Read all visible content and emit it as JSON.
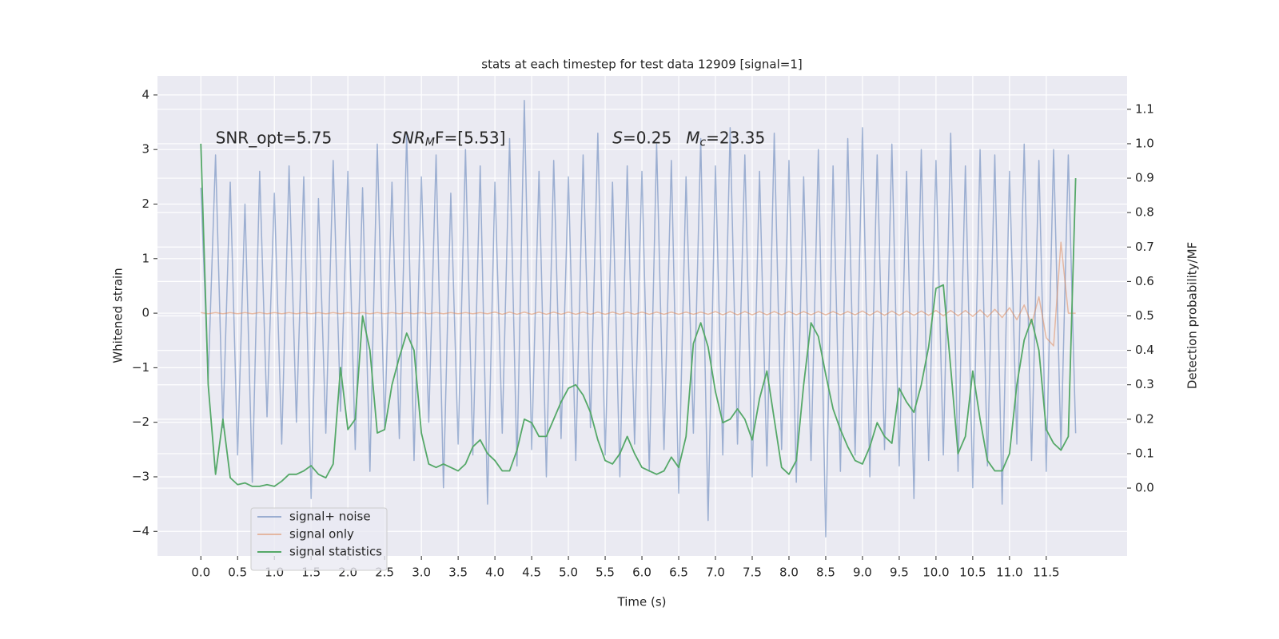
{
  "chart_data": {
    "type": "line",
    "title": "stats at each timestep for test data 12909 [signal=1]",
    "xlabel": "Time (s)",
    "ylabel": "Whitened strain",
    "y2label": "Detection probability/MF",
    "annotations": [
      {
        "parts": [
          "SNR_opt=5.75"
        ],
        "x": 0.2,
        "y": 3.2
      },
      {
        "parts": [
          "SNR",
          "M",
          "F=[5.53]"
        ],
        "x": 2.6,
        "y": 3.2
      },
      {
        "parts": [
          "S",
          "=0.25"
        ],
        "x": 5.6,
        "y": 3.2
      },
      {
        "parts": [
          "M",
          "c",
          "=23.35"
        ],
        "x": 6.6,
        "y": 3.2
      }
    ],
    "xlim": [
      -0.59,
      12.6
    ],
    "ylim": [
      -4.45,
      4.35
    ],
    "y2lim": [
      -0.197,
      1.197
    ],
    "xticks": [
      {
        "value": 0,
        "label": "0.0"
      },
      0.5,
      {
        "value": 1,
        "label": "1.0"
      },
      1.5,
      {
        "value": 2,
        "label": "2.0"
      },
      2.5,
      {
        "value": 3,
        "label": "3.0"
      },
      3.5,
      {
        "value": 4,
        "label": "4.0"
      },
      4.5,
      {
        "value": 5,
        "label": "5.0"
      },
      5.5,
      {
        "value": 6,
        "label": "6.0"
      },
      6.5,
      {
        "value": 7,
        "label": "7.0"
      },
      7.5,
      {
        "value": 8,
        "label": "8.0"
      },
      8.5,
      {
        "value": 9,
        "label": "9.0"
      },
      9.5,
      {
        "value": 10,
        "label": "10.0"
      },
      10.5,
      {
        "value": 11,
        "label": "11.0"
      },
      11.5
    ],
    "yticks": [
      {
        "value": -4,
        "label": "−4"
      },
      {
        "value": -3,
        "label": "−3"
      },
      {
        "value": -2,
        "label": "−2"
      },
      {
        "value": -1,
        "label": "−1"
      },
      0,
      1,
      2,
      3,
      4
    ],
    "y2ticks": [
      {
        "value": 0,
        "label": "0.0"
      },
      0.1,
      0.2,
      0.3,
      0.4,
      0.5,
      0.6,
      0.7,
      0.8,
      0.9,
      {
        "value": 1,
        "label": "1.0"
      },
      1.1
    ],
    "grid": true,
    "legend": "lower left",
    "x": [
      0,
      0.1,
      0.2,
      0.3,
      0.4,
      0.5,
      0.6,
      0.7,
      0.8,
      0.9,
      1,
      1.1,
      1.2,
      1.3,
      1.4,
      1.5,
      1.6,
      1.7,
      1.8,
      1.9,
      2,
      2.1,
      2.2,
      2.3,
      2.4,
      2.5,
      2.6,
      2.7,
      2.8,
      2.9,
      3,
      3.1,
      3.2,
      3.3,
      3.4,
      3.5,
      3.6,
      3.7,
      3.8,
      3.9,
      4,
      4.1,
      4.2,
      4.3,
      4.4,
      4.5,
      4.6,
      4.7,
      4.8,
      4.9,
      5,
      5.1,
      5.2,
      5.3,
      5.4,
      5.5,
      5.6,
      5.7,
      5.8,
      5.9,
      6,
      6.1,
      6.2,
      6.3,
      6.4,
      6.5,
      6.6,
      6.7,
      6.8,
      6.9,
      7,
      7.1,
      7.2,
      7.3,
      7.4,
      7.5,
      7.6,
      7.7,
      7.8,
      7.9,
      8,
      8.1,
      8.2,
      8.3,
      8.4,
      8.5,
      8.6,
      8.7,
      8.8,
      8.9,
      9,
      9.1,
      9.2,
      9.3,
      9.4,
      9.5,
      9.6,
      9.7,
      9.8,
      9.9,
      10,
      10.1,
      10.2,
      10.3,
      10.4,
      10.5,
      10.6,
      10.7,
      10.8,
      10.9,
      11,
      11.1,
      11.2,
      11.3,
      11.4,
      11.5,
      11.6,
      11.7,
      11.8,
      11.9
    ],
    "series": [
      {
        "name": "signal+ noise",
        "color": "#4c72b0",
        "alpha": 0.5,
        "values": [
          2.3,
          -1.2,
          2.9,
          -2.1,
          2.4,
          -2.6,
          2.0,
          -3.1,
          2.6,
          -1.9,
          2.2,
          -2.4,
          2.7,
          -2.0,
          2.5,
          -3.4,
          2.1,
          -2.2,
          2.8,
          -1.8,
          2.6,
          -2.5,
          2.3,
          -2.9,
          3.1,
          -2.1,
          2.4,
          -2.3,
          3.3,
          -2.7,
          2.5,
          -2.0,
          2.9,
          -3.2,
          2.2,
          -2.4,
          3.0,
          -2.6,
          2.7,
          -3.5,
          2.4,
          -2.2,
          3.2,
          -2.8,
          3.9,
          -2.5,
          2.6,
          -3.0,
          2.8,
          -2.3,
          2.5,
          -2.7,
          2.9,
          -2.1,
          3.3,
          -2.6,
          2.4,
          -3.0,
          2.7,
          -2.4,
          2.6,
          -2.9,
          3.1,
          -2.5,
          2.8,
          -3.3,
          2.5,
          -2.2,
          3.2,
          -3.8,
          2.7,
          -2.6,
          3.4,
          -2.4,
          2.9,
          -3.0,
          2.6,
          -2.8,
          3.3,
          -2.5,
          2.8,
          -3.1,
          2.5,
          -2.7,
          3.0,
          -4.1,
          2.7,
          -2.9,
          3.2,
          -2.6,
          3.4,
          -3.0,
          2.9,
          -2.5,
          3.1,
          -2.8,
          2.6,
          -3.4,
          3.0,
          -2.7,
          2.8,
          -2.6,
          3.3,
          -2.9,
          2.7,
          -3.2,
          3.0,
          -2.8,
          2.9,
          -3.5,
          2.6,
          -2.4,
          3.1,
          -2.7,
          2.8,
          -2.9,
          3.0,
          -2.5,
          2.9,
          -2.2
        ]
      },
      {
        "name": "signal only",
        "color": "#dd8452",
        "alpha": 0.5,
        "values": [
          0.01,
          -0.01,
          0.01,
          -0.01,
          0.01,
          -0.01,
          0.01,
          -0.01,
          0.01,
          -0.01,
          0.01,
          -0.01,
          0.01,
          -0.01,
          0.01,
          -0.01,
          0.01,
          -0.01,
          0.01,
          -0.01,
          0.01,
          -0.01,
          0.01,
          -0.01,
          0.01,
          -0.01,
          0.01,
          -0.01,
          0.01,
          -0.01,
          0.01,
          -0.01,
          0.01,
          -0.01,
          0.01,
          -0.01,
          0.01,
          -0.01,
          0.01,
          -0.01,
          0.02,
          -0.02,
          0.02,
          -0.02,
          0.02,
          -0.02,
          0.02,
          -0.02,
          0.02,
          -0.02,
          0.02,
          -0.02,
          0.02,
          -0.02,
          0.02,
          -0.02,
          0.02,
          -0.02,
          0.02,
          -0.02,
          0.02,
          -0.02,
          0.02,
          -0.02,
          0.02,
          -0.02,
          0.02,
          -0.02,
          0.02,
          -0.02,
          0.03,
          -0.03,
          0.03,
          -0.03,
          0.03,
          -0.03,
          0.03,
          -0.03,
          0.03,
          -0.03,
          0.03,
          -0.03,
          0.03,
          -0.03,
          0.03,
          -0.03,
          0.03,
          -0.03,
          0.03,
          -0.03,
          0.04,
          -0.04,
          0.04,
          -0.04,
          0.04,
          -0.04,
          0.04,
          -0.04,
          0.04,
          -0.04,
          0.05,
          -0.05,
          0.05,
          -0.05,
          0.05,
          -0.06,
          0.06,
          -0.07,
          0.07,
          -0.08,
          0.1,
          -0.12,
          0.15,
          -0.2,
          0.3,
          -0.45,
          -0.6,
          1.3,
          0,
          0
        ]
      },
      {
        "name": "signal statistics",
        "color": "#55a868",
        "axis": "y2",
        "values": [
          1.0,
          0.3,
          0.04,
          0.2,
          0.03,
          0.01,
          0.015,
          0.005,
          0.005,
          0.01,
          0.005,
          0.02,
          0.04,
          0.04,
          0.05,
          0.065,
          0.04,
          0.03,
          0.07,
          0.35,
          0.17,
          0.2,
          0.5,
          0.4,
          0.16,
          0.17,
          0.3,
          0.38,
          0.45,
          0.4,
          0.16,
          0.07,
          0.06,
          0.07,
          0.06,
          0.05,
          0.07,
          0.12,
          0.14,
          0.1,
          0.08,
          0.05,
          0.05,
          0.11,
          0.2,
          0.19,
          0.15,
          0.15,
          0.2,
          0.25,
          0.29,
          0.3,
          0.27,
          0.22,
          0.14,
          0.08,
          0.07,
          0.1,
          0.15,
          0.1,
          0.06,
          0.05,
          0.04,
          0.05,
          0.09,
          0.06,
          0.15,
          0.42,
          0.48,
          0.41,
          0.28,
          0.19,
          0.2,
          0.23,
          0.2,
          0.14,
          0.26,
          0.34,
          0.2,
          0.06,
          0.04,
          0.08,
          0.3,
          0.48,
          0.44,
          0.33,
          0.23,
          0.17,
          0.12,
          0.08,
          0.07,
          0.12,
          0.19,
          0.15,
          0.13,
          0.29,
          0.25,
          0.22,
          0.3,
          0.41,
          0.58,
          0.59,
          0.35,
          0.1,
          0.15,
          0.34,
          0.2,
          0.08,
          0.05,
          0.05,
          0.1,
          0.3,
          0.43,
          0.49,
          0.4,
          0.17,
          0.13,
          0.11,
          0.15,
          0.9
        ]
      }
    ]
  }
}
